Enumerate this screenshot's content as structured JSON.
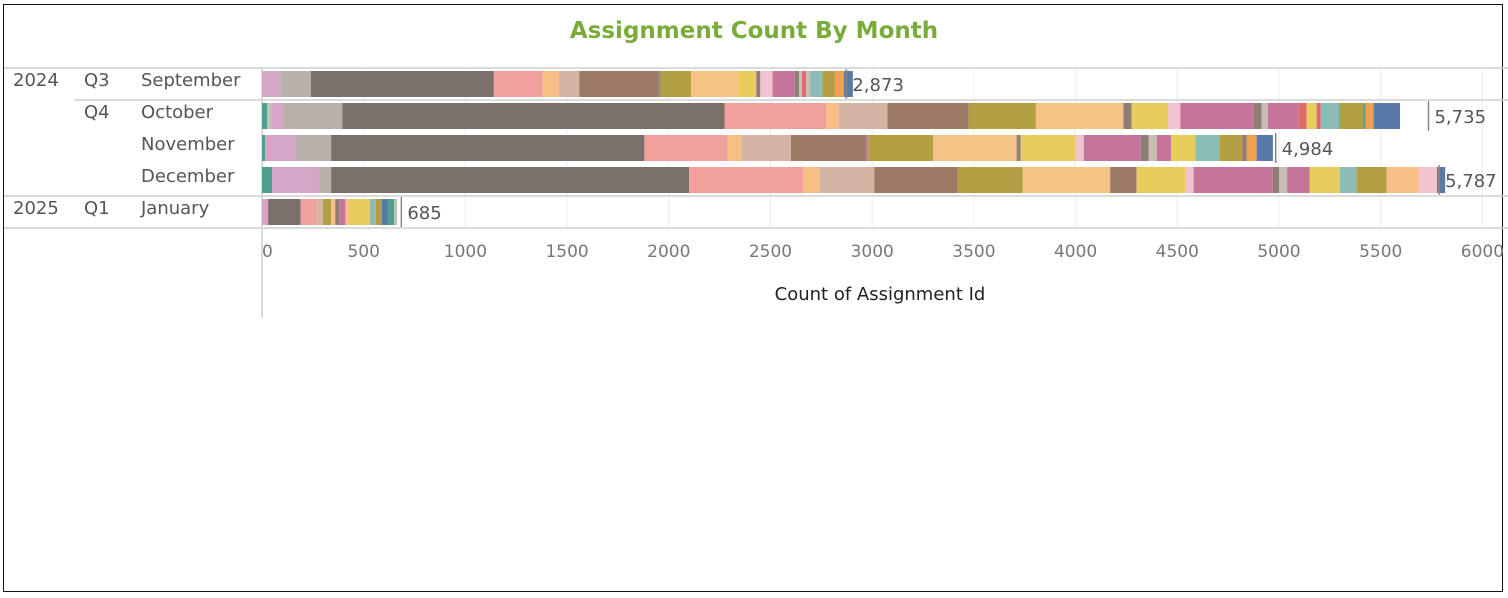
{
  "title": "Assignment Count By Month",
  "colors": {
    "title": "#7aac3a",
    "palette": [
      "#4e9f8f",
      "#d6a6c8",
      "#b8b0aa",
      "#7b7069",
      "#f0a19e",
      "#f5bf86",
      "#d4b5a4",
      "#9c7a66",
      "#b29f41",
      "#f6c386",
      "#e8cc5e",
      "#f1c2d0",
      "#c6759a",
      "#8e7f76",
      "#c9bdb6",
      "#de6a70",
      "#8bbcb5",
      "#efa150",
      "#5b79a8"
    ]
  },
  "rows": [
    {
      "year": "2024",
      "quarter": "Q3",
      "month": "September",
      "label": "2,873"
    },
    {
      "year": "",
      "quarter": "Q4",
      "month": "October",
      "label": "5,735"
    },
    {
      "year": "",
      "quarter": "",
      "month": "November",
      "label": "4,984"
    },
    {
      "year": "",
      "quarter": "",
      "month": "December",
      "label": "5,787"
    },
    {
      "year": "2025",
      "quarter": "Q1",
      "month": "January",
      "label": "685"
    }
  ],
  "chart_data": {
    "type": "bar",
    "orientation": "horizontal",
    "stacked": true,
    "title": "Assignment Count By Month",
    "xlabel": "Count of Assignment Id",
    "ylabel": "",
    "xlim": [
      0,
      6000
    ],
    "x_ticks": [
      "0",
      "500",
      "1000",
      "1500",
      "2000",
      "2500",
      "3000",
      "3500",
      "4000",
      "4500",
      "5000",
      "5500",
      "6000"
    ],
    "categories": [
      "September",
      "October",
      "November",
      "December",
      "January"
    ],
    "totals": [
      2873,
      5735,
      4984,
      5787,
      685
    ],
    "segments": [
      [
        [
          90,
          1
        ],
        [
          150,
          2
        ],
        [
          900,
          3
        ],
        [
          240,
          4
        ],
        [
          80,
          5
        ],
        [
          100,
          6
        ],
        [
          390,
          7
        ],
        [
          10,
          13
        ],
        [
          150,
          8
        ],
        [
          230,
          9
        ],
        [
          90,
          10
        ],
        [
          20,
          13
        ],
        [
          60,
          11
        ],
        [
          110,
          12
        ],
        [
          20,
          13
        ],
        [
          15,
          14
        ],
        [
          20,
          15
        ],
        [
          20,
          14
        ],
        [
          60,
          16
        ],
        [
          60,
          8
        ],
        [
          45,
          17
        ],
        [
          45,
          18
        ]
      ],
      [
        [
          25,
          0
        ],
        [
          20,
          14
        ],
        [
          60,
          1
        ],
        [
          290,
          2
        ],
        [
          1880,
          3
        ],
        [
          500,
          4
        ],
        [
          60,
          5
        ],
        [
          240,
          6
        ],
        [
          400,
          7
        ],
        [
          30,
          8
        ],
        [
          300,
          8
        ],
        [
          430,
          9
        ],
        [
          40,
          13
        ],
        [
          180,
          10
        ],
        [
          60,
          11
        ],
        [
          360,
          12
        ],
        [
          40,
          13
        ],
        [
          30,
          14
        ],
        [
          150,
          12
        ],
        [
          40,
          15
        ],
        [
          50,
          10
        ],
        [
          20,
          15
        ],
        [
          90,
          16
        ],
        [
          120,
          8
        ],
        [
          10,
          0
        ],
        [
          40,
          17
        ],
        [
          130,
          18
        ]
      ],
      [
        [
          15,
          0
        ],
        [
          150,
          1
        ],
        [
          175,
          2
        ],
        [
          1540,
          3
        ],
        [
          410,
          4
        ],
        [
          70,
          5
        ],
        [
          240,
          6
        ],
        [
          370,
          7
        ],
        [
          10,
          12
        ],
        [
          320,
          8
        ],
        [
          410,
          9
        ],
        [
          20,
          13
        ],
        [
          270,
          10
        ],
        [
          40,
          11
        ],
        [
          280,
          12
        ],
        [
          40,
          13
        ],
        [
          40,
          14
        ],
        [
          70,
          12
        ],
        [
          120,
          10
        ],
        [
          120,
          16
        ],
        [
          110,
          8
        ],
        [
          20,
          13
        ],
        [
          50,
          17
        ],
        [
          80,
          18
        ]
      ],
      [
        [
          50,
          0
        ],
        [
          230,
          1
        ],
        [
          60,
          2
        ],
        [
          1760,
          3
        ],
        [
          560,
          4
        ],
        [
          80,
          5
        ],
        [
          270,
          6
        ],
        [
          410,
          7
        ],
        [
          320,
          8
        ],
        [
          430,
          9
        ],
        [
          130,
          7
        ],
        [
          240,
          10
        ],
        [
          40,
          11
        ],
        [
          390,
          12
        ],
        [
          30,
          13
        ],
        [
          40,
          14
        ],
        [
          110,
          12
        ],
        [
          150,
          10
        ],
        [
          80,
          16
        ],
        [
          150,
          8
        ],
        [
          157,
          5
        ],
        [
          90,
          11
        ],
        [
          40,
          18
        ]
      ],
      [
        [
          30,
          1
        ],
        [
          160,
          3
        ],
        [
          80,
          4
        ],
        [
          30,
          6
        ],
        [
          40,
          8
        ],
        [
          20,
          5
        ],
        [
          20,
          13
        ],
        [
          30,
          12
        ],
        [
          20,
          5
        ],
        [
          100,
          10
        ],
        [
          30,
          16
        ],
        [
          30,
          8
        ],
        [
          30,
          18
        ],
        [
          30,
          0
        ],
        [
          15,
          14
        ]
      ]
    ]
  }
}
